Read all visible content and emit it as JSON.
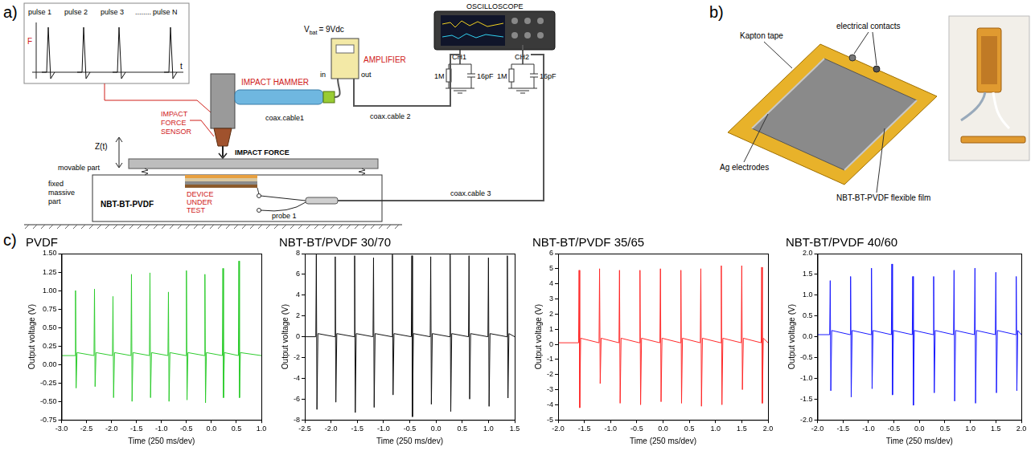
{
  "panel_labels": [
    "a)",
    "b)",
    "c)"
  ],
  "diagram_a": {
    "inset": {
      "pulses": [
        "pulse 1",
        "pulse 2",
        "pulse 3",
        "........",
        "pulse N"
      ],
      "y_label": "F",
      "x_label": "t"
    },
    "impact_hammer": "IMPACT HAMMER",
    "force_sensor": "IMPACT FORCE SENSOR",
    "battery": {
      "symbol": "V",
      "subscript": "bat",
      "value": "= 9Vdc"
    },
    "amplifier": "AMPLIFIER",
    "amp_in": "in",
    "amp_out": "out",
    "oscilloscope": "OSCILLOSCOPE",
    "channels": [
      {
        "name": "CH1",
        "resistor": "1M",
        "capacitor": "16pF"
      },
      {
        "name": "CH2",
        "resistor": "1M",
        "capacitor": "16pF"
      }
    ],
    "cables": [
      "coax.cable1",
      "coax.cable 2",
      "coax.cable 3"
    ],
    "impact_force": "IMPACT FORCE",
    "displacement": "Z(t)",
    "movable_part": "movable part",
    "fixed_part": "fixed massive part",
    "device": "NBT-BT-PVDF",
    "device_caption": "DEVICE UNDER TEST",
    "probe": "probe 1"
  },
  "diagram_b": {
    "kapton": "Kapton tape",
    "contacts": "electrical contacts",
    "film": "NBT-BT-PVDF flexible film",
    "electrodes": "Ag electrodes"
  },
  "chart_data": [
    {
      "type": "line",
      "title": "PVDF",
      "x_label": "Time (250 ms/dev)",
      "y_label": "Output voltage (V)",
      "color": "#2ecc2e",
      "grid": false,
      "xlim": [
        -3,
        1
      ],
      "ylim": [
        -0.75,
        1.5
      ],
      "xticks": [
        {
          "value": -3,
          "label": "-3.0"
        },
        -2.5,
        {
          "value": -2,
          "label": "-2.0"
        },
        -1.5,
        {
          "value": -1,
          "label": "-1.0"
        },
        -0.5,
        {
          "value": 0,
          "label": "0.0"
        },
        0.5,
        {
          "value": 1,
          "label": "1.0"
        }
      ],
      "yticks": [
        -0.75,
        {
          "value": -0.5,
          "label": "-0.50"
        },
        -0.25,
        {
          "value": 0,
          "label": "0.00"
        },
        0.25,
        {
          "value": 0.5,
          "label": "0.50"
        },
        0.75,
        {
          "value": 1,
          "label": "1.00"
        },
        1.25,
        {
          "value": 1.5,
          "label": "1.50"
        }
      ],
      "x": [
        -3.0,
        -2.73,
        -2.72,
        -2.708,
        -2.69,
        -2.35,
        -2.34,
        -2.328,
        -2.31,
        -1.98,
        -1.97,
        -1.958,
        -1.94,
        -1.61,
        -1.6,
        -1.588,
        -1.57,
        -1.24,
        -1.23,
        -1.218,
        -1.2,
        -0.87,
        -0.86,
        -0.848,
        -0.83,
        -0.51,
        -0.5,
        -0.488,
        -0.47,
        -0.14,
        -0.13,
        -0.118,
        -0.1,
        0.22,
        0.23,
        0.242,
        0.26,
        0.54,
        0.55,
        0.562,
        0.58,
        1.0
      ],
      "values": [
        0.12,
        0.12,
        1.0,
        -0.32,
        0.16,
        0.12,
        1.02,
        -0.3,
        0.16,
        0.12,
        0.92,
        -0.45,
        0.16,
        0.12,
        1.22,
        -0.5,
        0.16,
        0.12,
        1.24,
        -0.45,
        0.16,
        0.12,
        0.98,
        -0.5,
        0.16,
        0.12,
        1.27,
        -0.48,
        0.16,
        0.12,
        1.22,
        -0.52,
        0.16,
        0.12,
        1.3,
        -0.45,
        0.16,
        0.12,
        1.4,
        -0.45,
        0.16,
        0.12
      ]
    },
    {
      "type": "line",
      "title": "NBT-BT/PVDF 30/70",
      "x_label": "Time (250 ms/dev)",
      "y_label": "Output voltage (V)",
      "color": "#111111",
      "grid": false,
      "xlim": [
        -2.5,
        1.5
      ],
      "ylim": [
        -8,
        8
      ],
      "xticks": [
        -2.5,
        {
          "value": -2,
          "label": "-2.0"
        },
        -1.5,
        {
          "value": -1,
          "label": "-1.0"
        },
        -0.5,
        {
          "value": 0,
          "label": "0.0"
        },
        0.5,
        {
          "value": 1,
          "label": "1.0"
        },
        1.5
      ],
      "yticks": [
        -8,
        -6,
        -4,
        -2,
        0,
        2,
        4,
        6,
        8
      ],
      "x": [
        -2.5,
        -2.29,
        -2.28,
        -2.268,
        -2.25,
        -1.93,
        -1.92,
        -1.908,
        -1.89,
        -1.56,
        -1.55,
        -1.538,
        -1.52,
        -1.2,
        -1.19,
        -1.178,
        -1.16,
        -0.84,
        -0.83,
        -0.818,
        -0.8,
        -0.47,
        -0.46,
        -0.448,
        -0.43,
        -0.11,
        -0.1,
        -0.088,
        -0.07,
        0.26,
        0.27,
        0.282,
        0.3,
        0.62,
        0.63,
        0.642,
        0.66,
        0.99,
        1.0,
        1.012,
        1.03,
        1.35,
        1.36,
        1.372,
        1.39,
        1.5
      ],
      "values": [
        0,
        0,
        7.9,
        -7.0,
        0.3,
        0,
        7.7,
        -6.3,
        0.3,
        0,
        7.8,
        -7.3,
        0.3,
        0,
        7.6,
        -6.8,
        0.3,
        0,
        7.9,
        -5.6,
        0.3,
        0,
        7.8,
        -7.7,
        0.3,
        0,
        7.7,
        -6.5,
        0.3,
        0,
        7.9,
        -7.2,
        0.3,
        0,
        7.8,
        -6.0,
        0.3,
        0,
        7.6,
        -6.7,
        0.3,
        0,
        7.8,
        -5.9,
        0.3,
        0
      ]
    },
    {
      "type": "line",
      "title": "NBT-BT/PVDF 35/65",
      "x_label": "Time (250 ms/dev)",
      "y_label": "Output voltage (V)",
      "color": "#ff2a2a",
      "grid": false,
      "xlim": [
        -2,
        2
      ],
      "ylim": [
        -5,
        6
      ],
      "xticks": [
        {
          "value": -2,
          "label": "-2.0"
        },
        -1.5,
        {
          "value": -1,
          "label": "-1.0"
        },
        -0.5,
        {
          "value": 0,
          "label": "0.0"
        },
        0.5,
        {
          "value": 1,
          "label": "1.0"
        },
        1.5,
        {
          "value": 2,
          "label": "2.0"
        }
      ],
      "yticks": [
        -5,
        -4,
        -3,
        -2,
        -1,
        0,
        1,
        2,
        3,
        4,
        5,
        6
      ],
      "x": [
        -2.0,
        -1.61,
        -1.6,
        -1.588,
        -1.57,
        -1.22,
        -1.21,
        -1.198,
        -1.18,
        -0.84,
        -0.83,
        -0.818,
        -0.8,
        -0.45,
        -0.44,
        -0.428,
        -0.41,
        -0.06,
        -0.05,
        -0.038,
        -0.02,
        0.33,
        0.34,
        0.352,
        0.37,
        0.71,
        0.72,
        0.732,
        0.75,
        1.1,
        1.11,
        1.122,
        1.14,
        1.49,
        1.5,
        1.512,
        1.53,
        1.87,
        1.88,
        1.892,
        1.91,
        2.0
      ],
      "values": [
        0.1,
        0.1,
        4.9,
        -4.2,
        0.4,
        0.1,
        5.0,
        -2.6,
        0.4,
        0.1,
        4.9,
        -3.9,
        0.4,
        0.1,
        4.9,
        -4.0,
        0.4,
        0.1,
        5.0,
        -3.8,
        0.4,
        0.1,
        4.9,
        -3.9,
        0.4,
        0.1,
        5.0,
        -4.1,
        0.4,
        0.1,
        5.2,
        -4.0,
        0.4,
        0.1,
        5.2,
        -3.0,
        0.4,
        0.1,
        5.1,
        -3.9,
        0.4,
        0.1
      ]
    },
    {
      "type": "line",
      "title": "NBT-BT/PVDF 40/60",
      "x_label": "Time (250 ms/dev)",
      "y_label": "Output voltage (V)",
      "color": "#1a1aff",
      "grid": false,
      "xlim": [
        -2,
        2
      ],
      "ylim": [
        -2,
        2
      ],
      "xticks": [
        {
          "value": -2,
          "label": "-2.0"
        },
        -1.5,
        {
          "value": -1,
          "label": "-1.0"
        },
        -0.5,
        {
          "value": 0,
          "label": "0.0"
        },
        0.5,
        {
          "value": 1,
          "label": "1.0"
        },
        1.5,
        {
          "value": 2,
          "label": "2.0"
        }
      ],
      "yticks": [
        {
          "value": -2,
          "label": "-2.0"
        },
        -1.5,
        {
          "value": -1,
          "label": "-1.0"
        },
        -0.5,
        {
          "value": 0,
          "label": "0.0"
        },
        0.5,
        {
          "value": 1,
          "label": "1.0"
        },
        1.5,
        {
          "value": 2,
          "label": "2.0"
        }
      ],
      "x": [
        -2.0,
        -1.76,
        -1.75,
        -1.738,
        -1.72,
        -1.36,
        -1.35,
        -1.338,
        -1.32,
        -0.95,
        -0.94,
        -0.928,
        -0.91,
        -0.55,
        -0.54,
        -0.528,
        -0.51,
        -0.14,
        -0.13,
        -0.118,
        -0.1,
        0.27,
        0.28,
        0.292,
        0.31,
        0.67,
        0.68,
        0.692,
        0.71,
        1.08,
        1.09,
        1.102,
        1.12,
        1.49,
        1.5,
        1.512,
        1.53,
        1.89,
        1.9,
        1.912,
        1.93,
        2.0
      ],
      "values": [
        0.05,
        0.05,
        1.35,
        -1.3,
        0.15,
        0.05,
        1.45,
        -1.45,
        0.15,
        0.05,
        1.65,
        -1.25,
        0.15,
        0.05,
        1.75,
        -1.4,
        0.15,
        0.05,
        1.45,
        -1.65,
        0.15,
        0.05,
        1.45,
        -1.35,
        0.15,
        0.05,
        1.6,
        -1.55,
        0.15,
        0.05,
        1.65,
        -1.6,
        0.15,
        0.05,
        1.55,
        -1.35,
        0.15,
        0.05,
        1.45,
        -1.3,
        0.15,
        0.05
      ]
    }
  ]
}
